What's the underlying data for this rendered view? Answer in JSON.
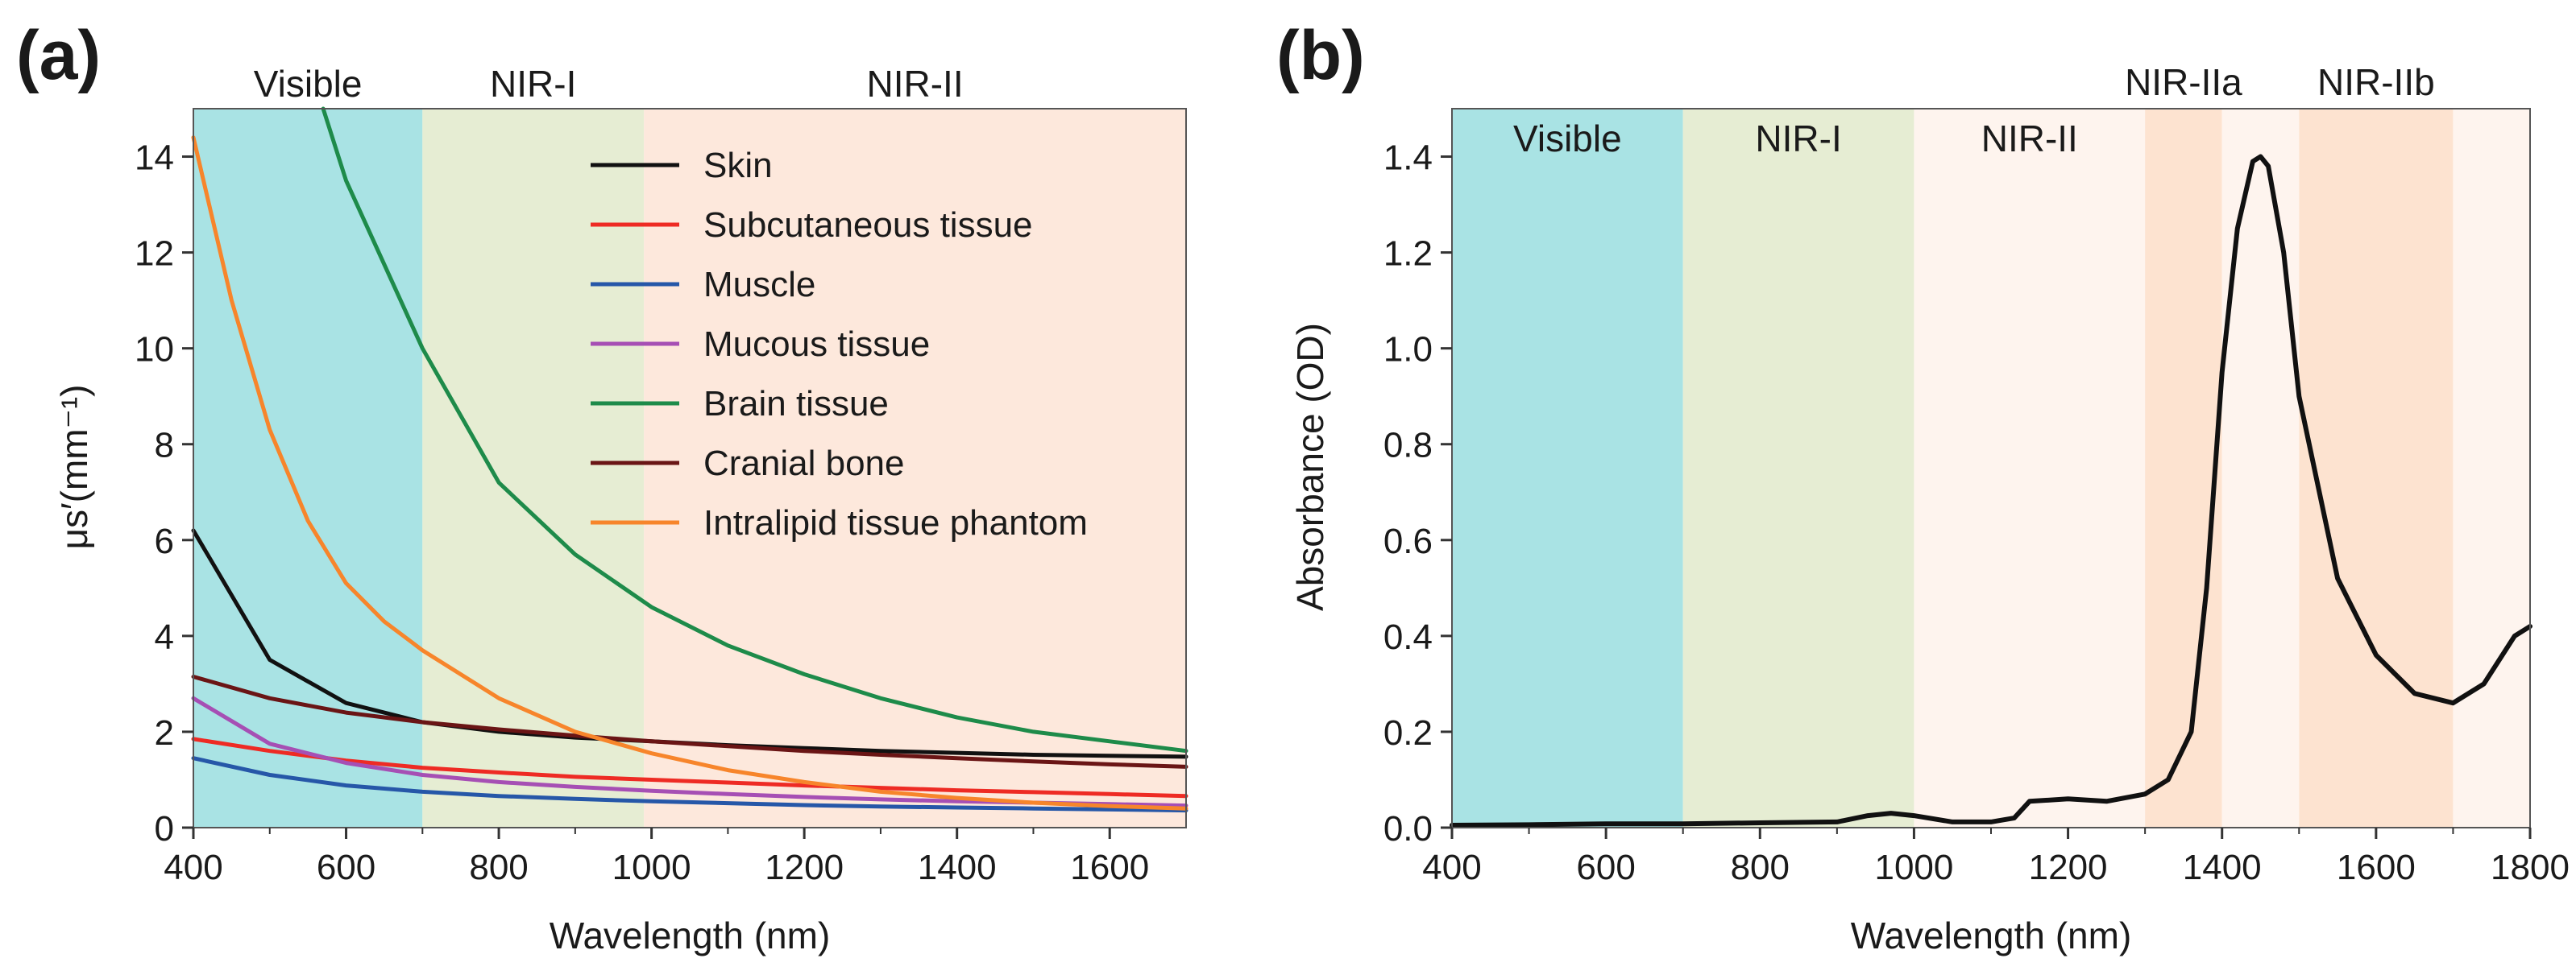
{
  "panels": [
    {
      "id": "a",
      "label": "(a)",
      "bands": [
        {
          "name": "Visible",
          "from": 400,
          "to": 700,
          "color": "#a9e3e4"
        },
        {
          "name": "NIR-I",
          "from": 700,
          "to": 990,
          "color": "#e6edd3"
        },
        {
          "name": "NIR-II",
          "from": 990,
          "to": 1700,
          "color": "#fde8dc"
        }
      ]
    },
    {
      "id": "b",
      "label": "(b)",
      "bands": [
        {
          "name": "Visible",
          "from": 400,
          "to": 700,
          "color": "#a9e3e4"
        },
        {
          "name": "NIR-I",
          "from": 700,
          "to": 1000,
          "color": "#e6edd3"
        },
        {
          "name": "NIR-II",
          "from": 1000,
          "to": 1300,
          "color": "#fef4ee"
        },
        {
          "name": "NIR-IIa",
          "from": 1300,
          "to": 1400,
          "color": "#fde3d0"
        },
        {
          "name": "",
          "from": 1400,
          "to": 1500,
          "color": "#fef4ee"
        },
        {
          "name": "NIR-IIb",
          "from": 1500,
          "to": 1700,
          "color": "#fde3d0"
        },
        {
          "name": "",
          "from": 1700,
          "to": 1800,
          "color": "#fef4ee"
        }
      ]
    }
  ],
  "chart_data": [
    {
      "type": "line",
      "title": "",
      "xlabel": "Wavelength (nm)",
      "ylabel": "μs′(mm⁻¹)",
      "xlim": [
        400,
        1700
      ],
      "ylim": [
        0,
        15
      ],
      "xticks": [
        400,
        600,
        800,
        1000,
        1200,
        1400,
        1600
      ],
      "yticks": [
        0,
        2,
        4,
        6,
        8,
        10,
        12,
        14
      ],
      "legend_position": "top-right",
      "series": [
        {
          "name": "Skin",
          "color": "#111111",
          "x": [
            400,
            500,
            600,
            700,
            800,
            900,
            1000,
            1100,
            1200,
            1300,
            1400,
            1500,
            1600,
            1700
          ],
          "y": [
            6.2,
            3.5,
            2.6,
            2.2,
            2.0,
            1.88,
            1.8,
            1.72,
            1.66,
            1.6,
            1.56,
            1.52,
            1.5,
            1.48
          ]
        },
        {
          "name": "Subcutaneous tissue",
          "color": "#ee2b24",
          "x": [
            400,
            500,
            600,
            700,
            800,
            900,
            1000,
            1100,
            1200,
            1300,
            1400,
            1500,
            1600,
            1700
          ],
          "y": [
            1.85,
            1.6,
            1.4,
            1.25,
            1.15,
            1.06,
            1.0,
            0.94,
            0.88,
            0.83,
            0.78,
            0.74,
            0.7,
            0.66
          ]
        },
        {
          "name": "Muscle",
          "color": "#2657a8",
          "x": [
            400,
            500,
            600,
            700,
            800,
            900,
            1000,
            1100,
            1200,
            1300,
            1400,
            1500,
            1600,
            1700
          ],
          "y": [
            1.45,
            1.1,
            0.88,
            0.75,
            0.66,
            0.6,
            0.55,
            0.51,
            0.47,
            0.44,
            0.42,
            0.4,
            0.38,
            0.36
          ]
        },
        {
          "name": "Mucous tissue",
          "color": "#a64fb4",
          "x": [
            400,
            500,
            600,
            700,
            800,
            900,
            1000,
            1100,
            1200,
            1300,
            1400,
            1500,
            1600,
            1700
          ],
          "y": [
            2.7,
            1.75,
            1.35,
            1.1,
            0.95,
            0.85,
            0.77,
            0.7,
            0.64,
            0.59,
            0.55,
            0.52,
            0.49,
            0.46
          ]
        },
        {
          "name": "Brain tissue",
          "color": "#1e8b4a",
          "x": [
            570,
            600,
            700,
            800,
            900,
            1000,
            1100,
            1200,
            1300,
            1400,
            1500,
            1600,
            1700
          ],
          "y": [
            15.0,
            13.5,
            10.0,
            7.2,
            5.7,
            4.6,
            3.8,
            3.2,
            2.7,
            2.3,
            2.0,
            1.8,
            1.6
          ]
        },
        {
          "name": "Cranial bone",
          "color": "#6a1515",
          "x": [
            400,
            500,
            600,
            700,
            800,
            900,
            1000,
            1100,
            1200,
            1300,
            1400,
            1500,
            1600,
            1700
          ],
          "y": [
            3.15,
            2.7,
            2.4,
            2.2,
            2.05,
            1.92,
            1.8,
            1.7,
            1.6,
            1.52,
            1.45,
            1.38,
            1.32,
            1.27
          ]
        },
        {
          "name": "Intralipid tissue phantom",
          "color": "#f7852b",
          "x": [
            400,
            450,
            500,
            550,
            600,
            650,
            700,
            800,
            900,
            1000,
            1100,
            1200,
            1300,
            1400,
            1500,
            1600,
            1700
          ],
          "y": [
            14.4,
            11.0,
            8.3,
            6.4,
            5.1,
            4.3,
            3.7,
            2.7,
            2.0,
            1.55,
            1.2,
            0.95,
            0.75,
            0.62,
            0.52,
            0.45,
            0.4
          ]
        }
      ]
    },
    {
      "type": "line",
      "title": "",
      "xlabel": "Wavelength (nm)",
      "ylabel": "Absorbance (OD)",
      "xlim": [
        400,
        1800
      ],
      "ylim": [
        0,
        1.5
      ],
      "xticks": [
        400,
        600,
        800,
        1000,
        1200,
        1400,
        1600,
        1800
      ],
      "yticks": [
        0.0,
        0.2,
        0.4,
        0.6,
        0.8,
        1.0,
        1.2,
        1.4
      ],
      "ytick_labels": [
        "0.0",
        "0.2",
        "0.4",
        "0.6",
        "0.8",
        "1.0",
        "1.2",
        "1.4"
      ],
      "series": [
        {
          "name": "",
          "color": "#111111",
          "x": [
            400,
            500,
            600,
            700,
            800,
            900,
            940,
            970,
            1000,
            1050,
            1100,
            1130,
            1150,
            1200,
            1250,
            1300,
            1330,
            1360,
            1380,
            1400,
            1420,
            1440,
            1450,
            1460,
            1480,
            1500,
            1550,
            1600,
            1650,
            1700,
            1740,
            1780,
            1800
          ],
          "y": [
            0.005,
            0.006,
            0.008,
            0.008,
            0.01,
            0.012,
            0.025,
            0.03,
            0.025,
            0.012,
            0.012,
            0.02,
            0.055,
            0.06,
            0.055,
            0.07,
            0.1,
            0.2,
            0.5,
            0.95,
            1.25,
            1.39,
            1.4,
            1.38,
            1.2,
            0.9,
            0.52,
            0.36,
            0.28,
            0.26,
            0.3,
            0.4,
            0.42
          ]
        }
      ]
    }
  ]
}
